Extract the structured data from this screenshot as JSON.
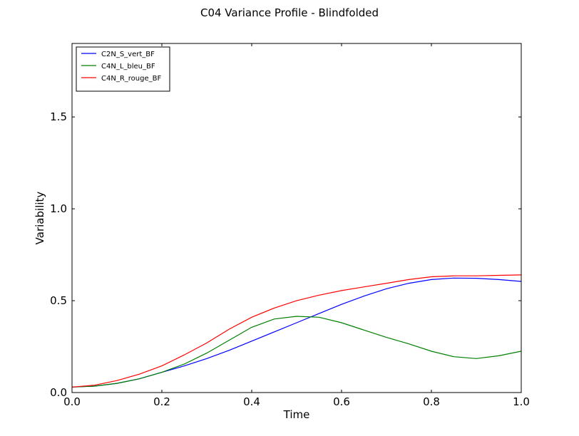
{
  "chart_data": {
    "type": "line",
    "title": "C04 Variance Profile - Blindfolded",
    "xlabel": "Time",
    "ylabel": "Variability",
    "xlim": [
      0.0,
      1.0
    ],
    "ylim": [
      0.0,
      1.9
    ],
    "x_ticks": [
      0.0,
      0.2,
      0.4,
      0.6,
      0.8,
      1.0
    ],
    "x_tick_labels": [
      "0.0",
      "0.2",
      "0.4",
      "0.6",
      "0.8",
      "1.0"
    ],
    "y_ticks": [
      0.0,
      0.5,
      1.0,
      1.5
    ],
    "y_tick_labels": [
      "0.0",
      "0.5",
      "1.0",
      "1.5"
    ],
    "grid": false,
    "legend_position": "top-left",
    "x": [
      0.0,
      0.05,
      0.1,
      0.15,
      0.2,
      0.25,
      0.3,
      0.35,
      0.4,
      0.45,
      0.5,
      0.55,
      0.6,
      0.65,
      0.7,
      0.75,
      0.8,
      0.85,
      0.9,
      0.95,
      1.0
    ],
    "series": [
      {
        "name": "C2N_S_vert_BF",
        "color": "#0000ff",
        "values": [
          0.03,
          0.035,
          0.05,
          0.075,
          0.11,
          0.145,
          0.185,
          0.23,
          0.28,
          0.33,
          0.38,
          0.43,
          0.48,
          0.525,
          0.565,
          0.595,
          0.615,
          0.623,
          0.622,
          0.615,
          0.605
        ]
      },
      {
        "name": "C4N_L_bleu_BF",
        "color": "#008000",
        "values": [
          0.03,
          0.035,
          0.05,
          0.075,
          0.11,
          0.155,
          0.215,
          0.285,
          0.355,
          0.4,
          0.415,
          0.41,
          0.38,
          0.34,
          0.3,
          0.265,
          0.225,
          0.195,
          0.185,
          0.2,
          0.225
        ]
      },
      {
        "name": "C4N_R_rouge_BF",
        "color": "#ff0000",
        "values": [
          0.03,
          0.04,
          0.065,
          0.1,
          0.145,
          0.205,
          0.27,
          0.345,
          0.41,
          0.46,
          0.5,
          0.53,
          0.555,
          0.575,
          0.595,
          0.615,
          0.63,
          0.635,
          0.635,
          0.638,
          0.64
        ]
      }
    ]
  }
}
